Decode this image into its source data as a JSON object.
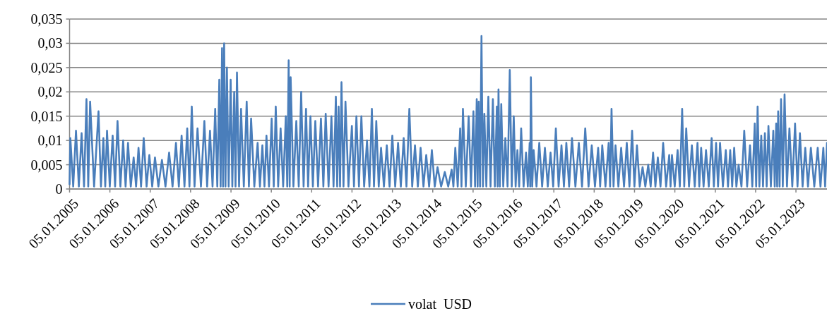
{
  "chart_data": {
    "type": "line",
    "xlim": [
      "2005-01-05",
      "2023-10-13"
    ],
    "xticks": [
      {
        "value": "2005-01-05",
        "label": "05.01.2005"
      },
      {
        "value": "2006-01-05",
        "label": "05.01.2006"
      },
      {
        "value": "2007-01-05",
        "label": "05.01.2007"
      },
      {
        "value": "2008-01-05",
        "label": "05.01.2008"
      },
      {
        "value": "2009-01-05",
        "label": "05.01.2009"
      },
      {
        "value": "2010-01-05",
        "label": "05.01.2010"
      },
      {
        "value": "2011-01-05",
        "label": "05.01.2011"
      },
      {
        "value": "2012-01-05",
        "label": "05.01.2012"
      },
      {
        "value": "2013-01-05",
        "label": "05.01.2013"
      },
      {
        "value": "2014-01-05",
        "label": "05.01.2014"
      },
      {
        "value": "2015-01-05",
        "label": "05.01.2015"
      },
      {
        "value": "2016-01-05",
        "label": "05.01.2016"
      },
      {
        "value": "2017-01-05",
        "label": "05.01.2017"
      },
      {
        "value": "2018-01-05",
        "label": "05.01.2018"
      },
      {
        "value": "2019-01-05",
        "label": "05.01.2019"
      },
      {
        "value": "2020-01-05",
        "label": "05.01.2020"
      },
      {
        "value": "2021-01-05",
        "label": "05.01.2021"
      },
      {
        "value": "2022-01-05",
        "label": "05.01.2022"
      },
      {
        "value": "2023-01-05",
        "label": "05.01.2023"
      }
    ],
    "ylim": [
      0,
      0.035
    ],
    "yticks": [
      0,
      {
        "value": 0.005,
        "label": "0,005"
      },
      {
        "value": 0.01,
        "label": "0,01"
      },
      {
        "value": 0.015,
        "label": "0,015"
      },
      {
        "value": 0.02,
        "label": "0,02"
      },
      {
        "value": 0.025,
        "label": "0,025"
      },
      {
        "value": 0.03,
        "label": "0,03"
      },
      {
        "value": 0.035,
        "label": "0,035"
      }
    ],
    "grid": "y",
    "legend": "bottom",
    "line_style": "solid",
    "marker": "none",
    "series": [
      {
        "name": "volat  USD",
        "color": "#4a7ebb",
        "x": [
          "2005-01-05",
          "2005-01-12",
          "2005-02-07",
          "2005-03-04",
          "2005-03-30",
          "2005-04-24",
          "2005-05-16",
          "2005-06-07",
          "2005-06-23",
          "2005-07-10",
          "2005-08-15",
          "2005-09-24",
          "2005-10-16",
          "2005-11-07",
          "2005-11-24",
          "2005-12-10",
          "2006-01-04",
          "2006-01-30",
          "2006-02-21",
          "2006-03-15",
          "2006-04-10",
          "2006-05-05",
          "2006-05-27",
          "2006-06-18",
          "2006-07-13",
          "2006-08-08",
          "2006-08-30",
          "2006-09-21",
          "2006-10-14",
          "2006-11-07",
          "2006-12-03",
          "2006-12-28",
          "2007-01-23",
          "2007-02-17",
          "2007-03-20",
          "2007-04-21",
          "2007-05-23",
          "2007-06-25",
          "2007-07-26",
          "2007-08-26",
          "2007-09-21",
          "2007-10-16",
          "2007-11-11",
          "2007-12-06",
          "2007-12-26",
          "2008-01-16",
          "2008-02-10",
          "2008-03-08",
          "2008-04-08",
          "2008-05-09",
          "2008-06-03",
          "2008-06-29",
          "2008-07-22",
          "2008-08-15",
          "2008-09-03",
          "2008-09-21",
          "2008-10-03",
          "2008-10-16",
          "2008-10-25",
          "2008-11-04",
          "2008-11-16",
          "2008-11-29",
          "2008-12-15",
          "2009-01-02",
          "2009-01-17",
          "2009-02-03",
          "2009-02-15",
          "2009-02-28",
          "2009-03-19",
          "2009-04-06",
          "2009-05-01",
          "2009-05-27",
          "2009-06-16",
          "2009-07-06",
          "2009-08-04",
          "2009-09-03",
          "2009-09-24",
          "2009-10-16",
          "2009-11-04",
          "2009-11-22",
          "2009-12-15",
          "2010-01-08",
          "2010-01-27",
          "2010-02-14",
          "2010-03-08",
          "2010-03-30",
          "2010-04-22",
          "2010-05-16",
          "2010-05-29",
          "2010-06-11",
          "2010-06-20",
          "2010-06-29",
          "2010-07-24",
          "2010-08-19",
          "2010-09-10",
          "2010-10-02",
          "2010-10-24",
          "2010-11-15",
          "2010-12-04",
          "2010-12-25",
          "2011-01-16",
          "2011-02-07",
          "2011-03-04",
          "2011-03-30",
          "2011-04-21",
          "2011-05-12",
          "2011-06-07",
          "2011-07-03",
          "2011-07-22",
          "2011-08-12",
          "2011-08-24",
          "2011-09-06",
          "2011-09-19",
          "2011-10-02",
          "2011-10-20",
          "2011-11-07",
          "2011-12-04",
          "2012-01-04",
          "2012-01-23",
          "2012-02-14",
          "2012-03-08",
          "2012-03-30",
          "2012-04-24",
          "2012-05-20",
          "2012-06-11",
          "2012-07-03",
          "2012-07-22",
          "2012-08-12",
          "2012-09-03",
          "2012-09-24",
          "2012-10-20",
          "2012-11-15",
          "2012-12-10",
          "2013-01-04",
          "2013-01-30",
          "2013-02-25",
          "2013-03-22",
          "2013-04-17",
          "2013-05-12",
          "2013-06-07",
          "2013-07-03",
          "2013-07-28",
          "2013-08-23",
          "2013-09-17",
          "2013-10-13",
          "2013-11-07",
          "2013-12-03",
          "2013-12-28",
          "2014-01-23",
          "2014-02-17",
          "2014-03-22",
          "2014-04-24",
          "2014-05-25",
          "2014-06-25",
          "2014-07-11",
          "2014-07-28",
          "2014-08-19",
          "2014-09-10",
          "2014-09-22",
          "2014-10-05",
          "2014-10-31",
          "2014-11-26",
          "2014-12-17",
          "2015-01-08",
          "2015-01-23",
          "2015-02-07",
          "2015-02-15",
          "2015-02-25",
          "2015-03-09",
          "2015-03-22",
          "2015-04-04",
          "2015-04-17",
          "2015-05-05",
          "2015-05-23",
          "2015-06-12",
          "2015-07-03",
          "2015-07-21",
          "2015-08-08",
          "2015-08-15",
          "2015-08-23",
          "2015-09-04",
          "2015-09-17",
          "2015-10-05",
          "2015-10-24",
          "2015-11-13",
          "2015-12-03",
          "2015-12-21",
          "2016-01-08",
          "2016-01-25",
          "2016-02-10",
          "2016-02-26",
          "2016-03-15",
          "2016-04-06",
          "2016-04-28",
          "2016-05-14",
          "2016-05-31",
          "2016-06-05",
          "2016-06-11",
          "2016-06-23",
          "2016-07-06",
          "2016-08-01",
          "2016-08-26",
          "2016-09-21",
          "2016-10-16",
          "2016-11-11",
          "2016-12-06",
          "2016-12-30",
          "2017-01-23",
          "2017-02-17",
          "2017-03-15",
          "2017-04-06",
          "2017-04-28",
          "2017-05-23",
          "2017-06-18",
          "2017-07-19",
          "2017-08-19",
          "2017-09-17",
          "2017-10-16",
          "2017-11-15",
          "2017-12-14",
          "2018-01-12",
          "2018-02-10",
          "2018-02-28",
          "2018-03-19",
          "2018-04-17",
          "2018-05-16",
          "2018-05-29",
          "2018-06-11",
          "2018-06-29",
          "2018-07-17",
          "2018-08-12",
          "2018-09-06",
          "2018-10-02",
          "2018-10-27",
          "2018-11-20",
          "2018-12-14",
          "2019-01-04",
          "2019-01-27",
          "2019-02-21",
          "2019-03-19",
          "2019-04-13",
          "2019-05-09",
          "2019-05-31",
          "2019-06-22",
          "2019-07-13",
          "2019-08-04",
          "2019-08-28",
          "2019-09-21",
          "2019-10-18",
          "2019-11-15",
          "2019-11-27",
          "2019-12-10",
          "2020-01-04",
          "2020-01-30",
          "2020-02-19",
          "2020-03-11",
          "2020-03-30",
          "2020-04-17",
          "2020-05-12",
          "2020-06-07",
          "2020-07-03",
          "2020-07-28",
          "2020-08-13",
          "2020-08-30",
          "2020-09-21",
          "2020-10-13",
          "2020-11-07",
          "2020-12-03",
          "2020-12-23",
          "2021-01-12",
          "2021-01-30",
          "2021-02-17",
          "2021-03-15",
          "2021-04-10",
          "2021-04-30",
          "2021-05-20",
          "2021-06-07",
          "2021-06-25",
          "2021-07-15",
          "2021-08-04",
          "2021-08-30",
          "2021-09-24",
          "2021-10-20",
          "2021-11-15",
          "2021-12-06",
          "2021-12-28",
          "2022-01-10",
          "2022-01-23",
          "2022-02-08",
          "2022-02-25",
          "2022-03-13",
          "2022-03-30",
          "2022-04-15",
          "2022-05-01",
          "2022-05-23",
          "2022-06-14",
          "2022-06-27",
          "2022-07-10",
          "2022-07-19",
          "2022-07-28",
          "2022-08-10",
          "2022-08-23",
          "2022-09-08",
          "2022-09-24",
          "2022-10-16",
          "2022-11-07",
          "2022-12-03",
          "2022-12-28",
          "2023-01-19",
          "2023-02-10",
          "2023-03-06",
          "2023-03-30",
          "2023-04-24",
          "2023-05-20",
          "2023-06-20",
          "2023-07-21",
          "2023-08-15",
          "2023-09-10",
          "2023-09-26",
          "2023-10-13"
        ],
        "values": [
          0.001,
          0.0105,
          0.0005,
          0.012,
          0.0005,
          0.0115,
          0.0005,
          0.0185,
          0.0005,
          0.018,
          0.0005,
          0.016,
          0.0005,
          0.0105,
          0.0005,
          0.012,
          0.0005,
          0.011,
          0.0005,
          0.014,
          0.0005,
          0.01,
          0.0005,
          0.0095,
          0.0005,
          0.0065,
          0.0005,
          0.0085,
          0.0005,
          0.0105,
          0.0005,
          0.007,
          0.0005,
          0.0065,
          0.0005,
          0.006,
          0.0005,
          0.0075,
          0.0005,
          0.0095,
          0.0005,
          0.011,
          0.0005,
          0.0125,
          0.0005,
          0.017,
          0.0005,
          0.0125,
          0.0005,
          0.014,
          0.0005,
          0.012,
          0.0005,
          0.0165,
          0.0005,
          0.0225,
          0.0005,
          0.029,
          0.0005,
          0.03,
          0.0005,
          0.025,
          0.0005,
          0.0225,
          0.0005,
          0.02,
          0.0005,
          0.024,
          0.0005,
          0.0165,
          0.0005,
          0.018,
          0.0005,
          0.0145,
          0.0005,
          0.0095,
          0.0005,
          0.009,
          0.0005,
          0.011,
          0.0005,
          0.0145,
          0.0005,
          0.017,
          0.0005,
          0.0125,
          0.0005,
          0.015,
          0.0005,
          0.0265,
          0.0005,
          0.023,
          0.0005,
          0.014,
          0.0005,
          0.02,
          0.0005,
          0.0165,
          0.0005,
          0.015,
          0.0005,
          0.014,
          0.0005,
          0.0145,
          0.0005,
          0.0155,
          0.0005,
          0.015,
          0.0005,
          0.019,
          0.0005,
          0.017,
          0.0005,
          0.022,
          0.0005,
          0.018,
          0.0005,
          0.013,
          0.0005,
          0.015,
          0.0005,
          0.015,
          0.0005,
          0.01,
          0.0005,
          0.0165,
          0.0005,
          0.014,
          0.0005,
          0.0085,
          0.0005,
          0.009,
          0.0005,
          0.011,
          0.0005,
          0.0095,
          0.0005,
          0.0105,
          0.0005,
          0.0165,
          0.0005,
          0.009,
          0.0005,
          0.0085,
          0.0005,
          0.007,
          0.0005,
          0.008,
          0.0005,
          0.0045,
          0.0005,
          0.0035,
          0.0005,
          0.004,
          0.0005,
          0.0085,
          0.0005,
          0.0125,
          0.0005,
          0.0165,
          0.0005,
          0.015,
          0.0005,
          0.016,
          0.0005,
          0.0185,
          0.0005,
          0.018,
          0.0005,
          0.0315,
          0.0005,
          0.0155,
          0.0005,
          0.019,
          0.0005,
          0.0185,
          0.0005,
          0.017,
          0.0005,
          0.0205,
          0.0005,
          0.0175,
          0.0005,
          0.0105,
          0.0005,
          0.0245,
          0.0005,
          0.015,
          0.0005,
          0.008,
          0.0005,
          0.0125,
          0.0005,
          0.0075,
          0.0005,
          0.0095,
          0.0005,
          0.023,
          0.0005,
          0.008,
          0.0005,
          0.0095,
          0.0005,
          0.0085,
          0.0005,
          0.0075,
          0.0005,
          0.0125,
          0.0005,
          0.009,
          0.0005,
          0.0095,
          0.0005,
          0.0105,
          0.0005,
          0.0095,
          0.0005,
          0.0125,
          0.0005,
          0.009,
          0.0005,
          0.0085,
          0.0005,
          0.009,
          0.0005,
          0.0095,
          0.0005,
          0.0165,
          0.0005,
          0.009,
          0.0005,
          0.0085,
          0.0005,
          0.0095,
          0.0005,
          0.012,
          0.0005,
          0.009,
          0.0005,
          0.0045,
          0.0005,
          0.005,
          0.0005,
          0.0075,
          0.0005,
          0.0065,
          0.0005,
          0.0095,
          0.0005,
          0.007,
          0.0005,
          0.007,
          0.0005,
          0.008,
          0.0005,
          0.0165,
          0.0005,
          0.0125,
          0.0005,
          0.009,
          0.0005,
          0.0095,
          0.0005,
          0.0085,
          0.0005,
          0.008,
          0.0005,
          0.0105,
          0.0005,
          0.0095,
          0.0005,
          0.0095,
          0.0005,
          0.008,
          0.0005,
          0.008,
          0.0005,
          0.0085,
          0.0005,
          0.005,
          0.0005,
          0.012,
          0.0005,
          0.009,
          0.0005,
          0.0135,
          0.0005,
          0.017,
          0.0005,
          0.011,
          0.0005,
          0.0115,
          0.0005,
          0.013,
          0.0005,
          0.012,
          0.0005,
          0.0135,
          0.0005,
          0.016,
          0.0005,
          0.0185,
          0.0005,
          0.0195,
          0.0005,
          0.0125,
          0.0005,
          0.0135,
          0.0005,
          0.0115,
          0.0005,
          0.0085,
          0.0005,
          0.0085,
          0.0005,
          0.0085,
          0.0005,
          0.0085,
          0.0005,
          0.0095
        ]
      }
    ]
  }
}
